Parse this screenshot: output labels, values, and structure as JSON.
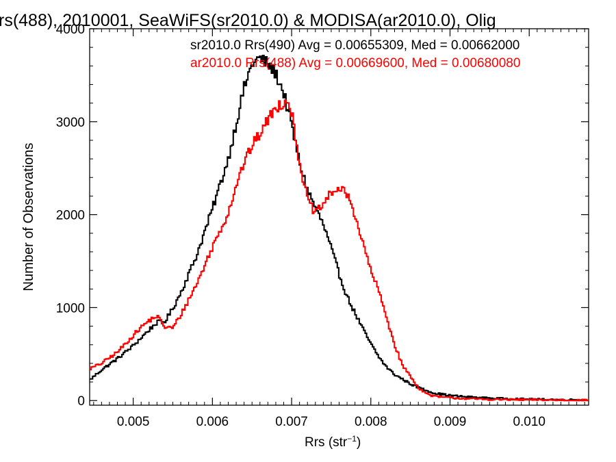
{
  "chart_data": {
    "type": "line",
    "title": "rs(488), 2010001, SeaWiFS(sr2010.0) & MODISA(ar2010.0), Olig",
    "xlabel_main": "Rrs (str",
    "xlabel_sup": "−1",
    "xlabel_end": ")",
    "ylabel": "Number of Observations",
    "xlim": [
      0.00445,
      0.01075
    ],
    "ylim": [
      -50,
      4000
    ],
    "xticks": [
      0.005,
      0.006,
      0.007,
      0.008,
      0.009,
      0.01
    ],
    "xtick_labels": [
      "0.005",
      "0.006",
      "0.007",
      "0.008",
      "0.009",
      "0.010"
    ],
    "yticks": [
      0,
      1000,
      2000,
      3000,
      4000
    ],
    "ytick_labels": [
      "0",
      "1000",
      "2000",
      "3000",
      "4000"
    ],
    "legend_position": "top-right",
    "series": [
      {
        "label": "sr2010.0 Rrs(490) Avg = 0.00655309, Med = 0.00662000",
        "color": "#000000",
        "x": [
          0.00445,
          0.0046,
          0.0048,
          0.005,
          0.0052,
          0.0053,
          0.0054,
          0.0055,
          0.0056,
          0.0058,
          0.006,
          0.0062,
          0.0063,
          0.0064,
          0.0065,
          0.00655,
          0.0066,
          0.00665,
          0.0067,
          0.0068,
          0.0069,
          0.007,
          0.0071,
          0.0072,
          0.0073,
          0.0074,
          0.0075,
          0.0076,
          0.0077,
          0.0078,
          0.0079,
          0.008,
          0.0081,
          0.0082,
          0.0083,
          0.0084,
          0.0085,
          0.0086,
          0.0087,
          0.0088,
          0.009,
          0.0092,
          0.0095,
          0.01,
          0.0105,
          0.01075
        ],
        "values": [
          220,
          330,
          450,
          590,
          760,
          840,
          850,
          990,
          1160,
          1560,
          2060,
          2600,
          2980,
          3360,
          3620,
          3660,
          3680,
          3650,
          3620,
          3520,
          3310,
          2960,
          2560,
          2270,
          2080,
          1890,
          1640,
          1360,
          1120,
          940,
          770,
          610,
          470,
          360,
          280,
          230,
          180,
          140,
          110,
          80,
          55,
          40,
          25,
          14,
          8,
          6
        ]
      },
      {
        "label": "ar2010.0 Rrs(488) Avg = 0.00669600, Med = 0.00680080",
        "color": "#ff0000",
        "x": [
          0.00445,
          0.0046,
          0.0048,
          0.005,
          0.0051,
          0.0052,
          0.0053,
          0.0054,
          0.0055,
          0.0056,
          0.0058,
          0.006,
          0.0062,
          0.0063,
          0.0064,
          0.0065,
          0.0066,
          0.0067,
          0.0068,
          0.0069,
          0.00695,
          0.007,
          0.0071,
          0.0072,
          0.0073,
          0.0074,
          0.0075,
          0.0076,
          0.0077,
          0.0078,
          0.0079,
          0.008,
          0.0081,
          0.0082,
          0.0083,
          0.0084,
          0.0085,
          0.0086,
          0.0087,
          0.0088,
          0.009,
          0.0092,
          0.0095,
          0.01,
          0.0105,
          0.01075
        ],
        "values": [
          340,
          400,
          520,
          700,
          790,
          860,
          910,
          790,
          780,
          920,
          1250,
          1650,
          2020,
          2320,
          2560,
          2740,
          2870,
          3020,
          3150,
          3210,
          3240,
          3100,
          2570,
          2160,
          2010,
          2110,
          2240,
          2280,
          2220,
          2000,
          1690,
          1400,
          1180,
          890,
          600,
          380,
          260,
          140,
          75,
          45,
          30,
          20,
          12,
          8,
          5,
          3
        ]
      }
    ]
  }
}
